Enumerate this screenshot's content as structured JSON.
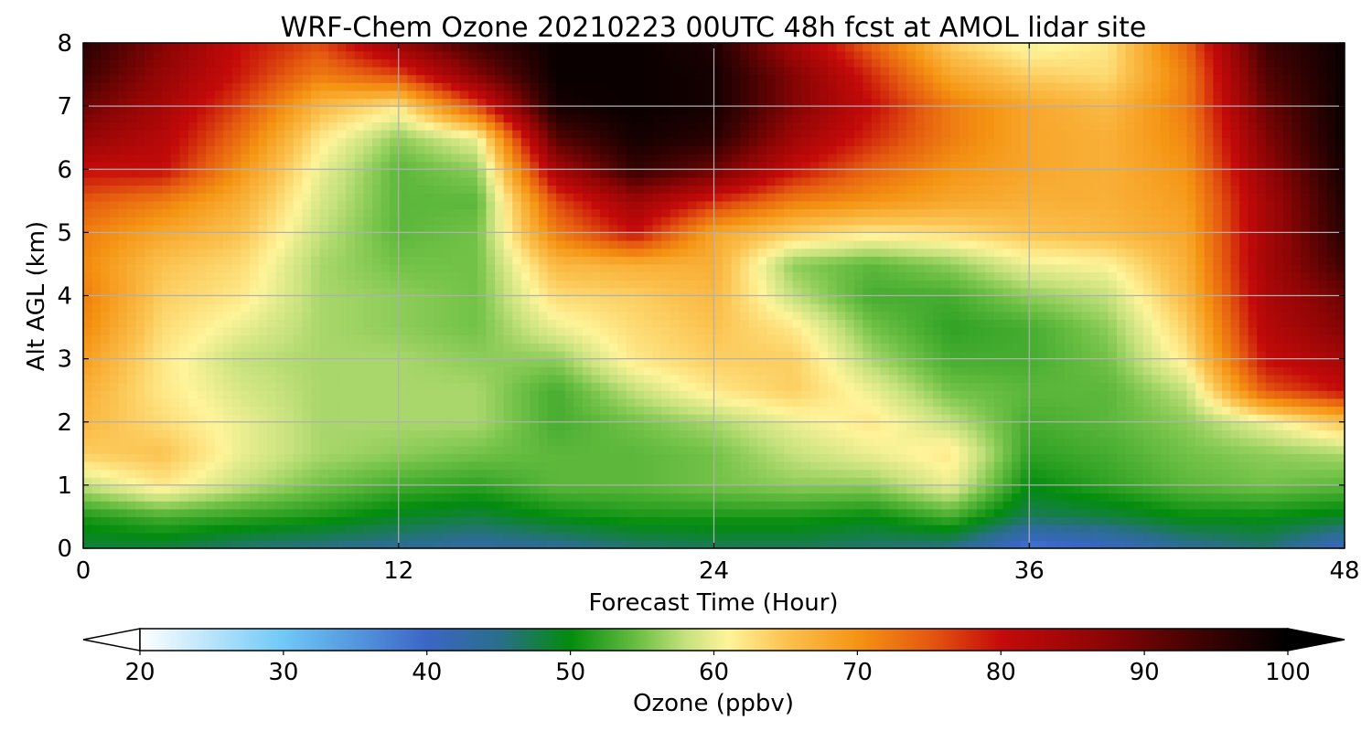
{
  "chart_data": {
    "type": "heatmap",
    "title": "WRF-Chem Ozone  20210223 00UTC 48h fcst at AMOL lidar site",
    "xlabel": "Forecast Time (Hour)",
    "ylabel": "Alt AGL (km)",
    "xlim": [
      0,
      48
    ],
    "ylim": [
      0,
      8
    ],
    "x_ticks": [
      "0",
      "12",
      "24",
      "36",
      "48"
    ],
    "y_ticks": [
      "0",
      "1",
      "2",
      "3",
      "4",
      "5",
      "6",
      "7",
      "8"
    ],
    "grid": true,
    "x": [
      0,
      3,
      6,
      9,
      12,
      15,
      18,
      21,
      24,
      27,
      30,
      33,
      36,
      39,
      42,
      45,
      48
    ],
    "y": [
      0,
      0.5,
      1,
      1.5,
      2,
      2.5,
      3,
      3.5,
      4,
      4.5,
      5,
      5.5,
      6,
      6.5,
      7,
      7.5,
      8
    ],
    "z_rows": [
      [
        48,
        48,
        46,
        45,
        44,
        43,
        44,
        46,
        47,
        47,
        46,
        45,
        38,
        40,
        44,
        46,
        40
      ],
      [
        51,
        53,
        52,
        51,
        49,
        48,
        50,
        51,
        51,
        51,
        50,
        53,
        47,
        48,
        50,
        50,
        49
      ],
      [
        58,
        62,
        58,
        55,
        53,
        52,
        54,
        54,
        55,
        56,
        56,
        60,
        50,
        52,
        54,
        55,
        54
      ],
      [
        64,
        65,
        60,
        57,
        56,
        55,
        54,
        54,
        55,
        58,
        60,
        62,
        52,
        53,
        55,
        56,
        57
      ],
      [
        66,
        63,
        60,
        57,
        57,
        57,
        53,
        55,
        57,
        60,
        62,
        58,
        53,
        54,
        56,
        60,
        65
      ],
      [
        67,
        62,
        59,
        57,
        57,
        57,
        53,
        58,
        62,
        64,
        60,
        55,
        54,
        54,
        58,
        75,
        80
      ],
      [
        69,
        62,
        58,
        57,
        57,
        56,
        56,
        62,
        64,
        64,
        57,
        53,
        53,
        55,
        62,
        80,
        84
      ],
      [
        71,
        63,
        60,
        57,
        56,
        55,
        60,
        63,
        65,
        62,
        55,
        52,
        53,
        56,
        64,
        82,
        88
      ],
      [
        72,
        64,
        62,
        57,
        56,
        55,
        63,
        64,
        66,
        58,
        53,
        53,
        56,
        58,
        66,
        83,
        90
      ],
      [
        71,
        65,
        63,
        57,
        55,
        55,
        66,
        67,
        67,
        56,
        54,
        56,
        60,
        61,
        67,
        84,
        94
      ],
      [
        72,
        68,
        65,
        58,
        54,
        55,
        72,
        80,
        68,
        64,
        62,
        63,
        65,
        66,
        68,
        84,
        96
      ],
      [
        75,
        72,
        67,
        59,
        54,
        54,
        76,
        85,
        78,
        72,
        70,
        68,
        67,
        67,
        69,
        84,
        97
      ],
      [
        80,
        80,
        70,
        60,
        54,
        56,
        84,
        95,
        90,
        80,
        74,
        70,
        68,
        67,
        70,
        86,
        98
      ],
      [
        86,
        82,
        73,
        62,
        56,
        60,
        92,
        98,
        96,
        85,
        78,
        72,
        68,
        67,
        71,
        88,
        99
      ],
      [
        90,
        84,
        76,
        66,
        62,
        76,
        98,
        99,
        98,
        88,
        80,
        72,
        68,
        66,
        72,
        90,
        99
      ],
      [
        94,
        86,
        79,
        72,
        76,
        88,
        99,
        99,
        98,
        88,
        78,
        68,
        64,
        63,
        72,
        92,
        99
      ],
      [
        96,
        88,
        80,
        76,
        86,
        94,
        99,
        99,
        97,
        84,
        74,
        64,
        60,
        62,
        74,
        94,
        99
      ]
    ],
    "colorbar": {
      "label": "Ozone  (ppbv)",
      "min": 20,
      "max": 100,
      "ticks": [
        "20",
        "30",
        "40",
        "50",
        "60",
        "70",
        "80",
        "90",
        "100"
      ],
      "extend": "both",
      "stops": [
        [
          20,
          "#ffffff"
        ],
        [
          30,
          "#6fc8f6"
        ],
        [
          40,
          "#3a66c6"
        ],
        [
          45,
          "#2a6e8c"
        ],
        [
          50,
          "#038c0d"
        ],
        [
          55,
          "#72c247"
        ],
        [
          58,
          "#c5e17d"
        ],
        [
          61,
          "#fff49a"
        ],
        [
          65,
          "#fbc24f"
        ],
        [
          70,
          "#f59413"
        ],
        [
          75,
          "#e55910"
        ],
        [
          80,
          "#c50a0a"
        ],
        [
          87,
          "#8e0505"
        ],
        [
          94,
          "#3d0202"
        ],
        [
          100,
          "#000000"
        ]
      ]
    }
  }
}
